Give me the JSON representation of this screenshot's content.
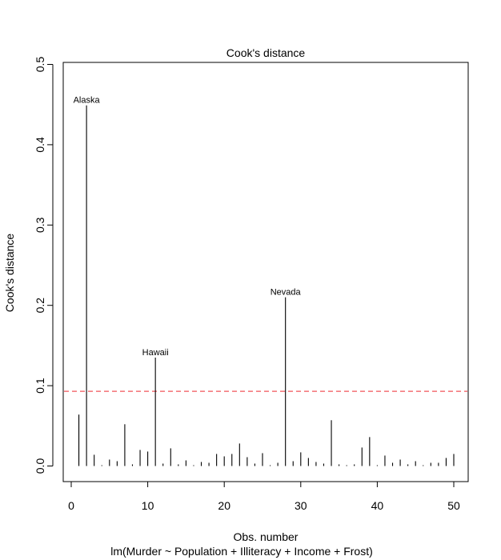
{
  "chart_data": {
    "type": "bar",
    "title": "Cook's distance",
    "xlabel": "Obs. number",
    "subtitle": "lm(Murder ~ Population + Illiteracy + Income + Frost)",
    "ylabel": "Cook's distance",
    "xlim": [
      0,
      52
    ],
    "ylim": [
      0,
      0.5
    ],
    "xticks": [
      "0",
      "10",
      "20",
      "30",
      "40",
      "50"
    ],
    "yticks": [
      "0.0",
      "0.1",
      "0.2",
      "0.3",
      "0.4",
      "0.5"
    ],
    "x": [
      1,
      2,
      3,
      4,
      5,
      6,
      7,
      8,
      9,
      10,
      11,
      12,
      13,
      14,
      15,
      16,
      17,
      18,
      19,
      20,
      21,
      22,
      23,
      24,
      25,
      26,
      27,
      28,
      29,
      30,
      31,
      32,
      33,
      34,
      35,
      36,
      37,
      38,
      39,
      40,
      41,
      42,
      43,
      44,
      45,
      46,
      47,
      48,
      49,
      50
    ],
    "values": [
      0.064,
      0.449,
      0.014,
      0.001,
      0.008,
      0.006,
      0.052,
      0.002,
      0.02,
      0.018,
      0.135,
      0.003,
      0.022,
      0.002,
      0.007,
      0.001,
      0.005,
      0.004,
      0.015,
      0.012,
      0.015,
      0.028,
      0.011,
      0.003,
      0.016,
      0.001,
      0.004,
      0.21,
      0.006,
      0.017,
      0.01,
      0.005,
      0.003,
      0.057,
      0.002,
      0.001,
      0.002,
      0.023,
      0.036,
      0.001,
      0.013,
      0.004,
      0.008,
      0.002,
      0.006,
      0.001,
      0.004,
      0.004,
      0.01,
      0.015
    ],
    "threshold": 0.093,
    "threshold_color": "#f0555a",
    "annotations": [
      {
        "obs": 2,
        "label": "Alaska"
      },
      {
        "obs": 11,
        "label": "Hawaii"
      },
      {
        "obs": 28,
        "label": "Nevada"
      }
    ]
  }
}
